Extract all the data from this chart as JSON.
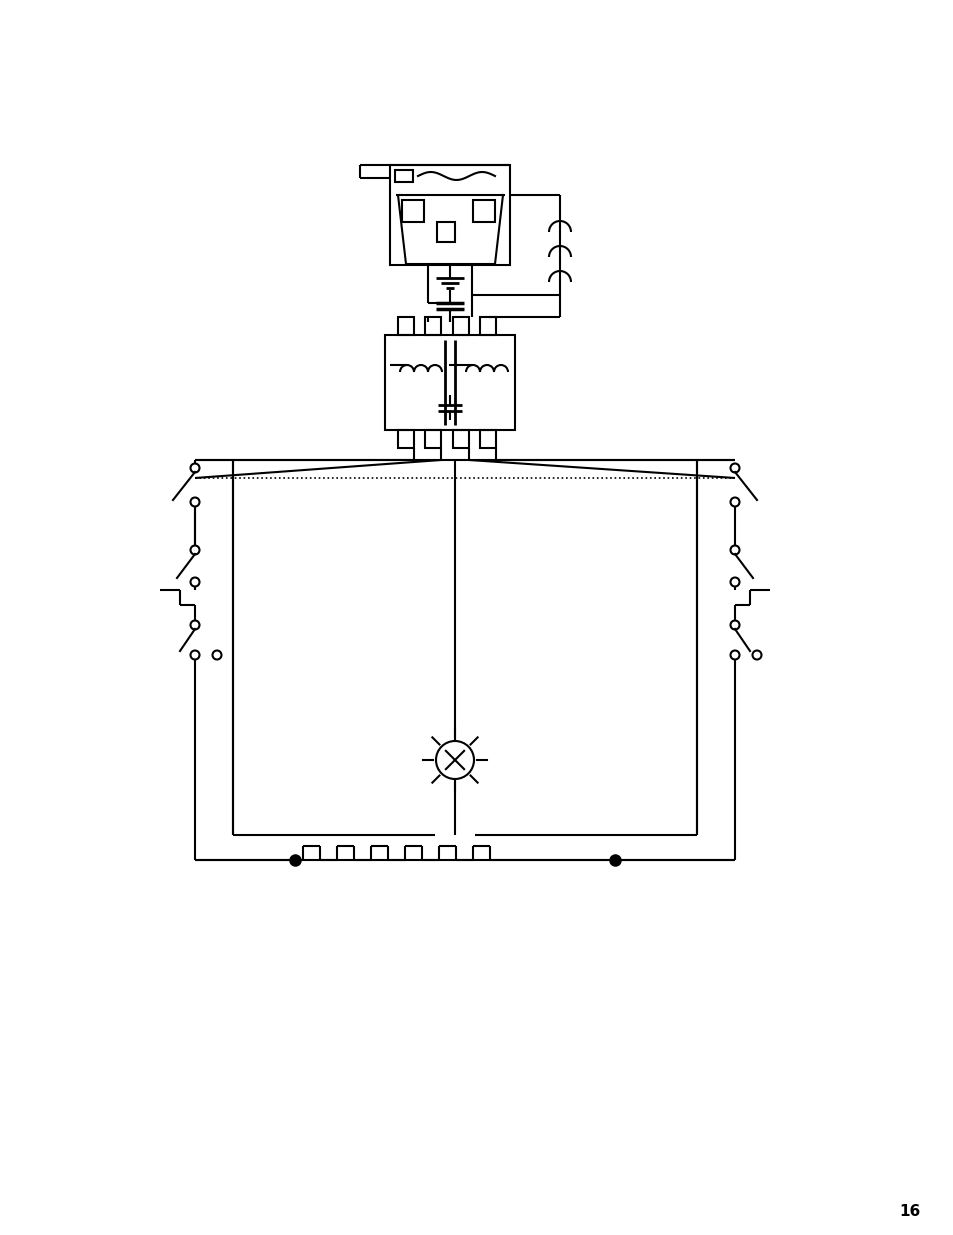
{
  "bg_color": "#ffffff",
  "line_color": "#000000",
  "page_number": "16",
  "figsize": [
    9.54,
    12.35
  ],
  "dpi": 100
}
